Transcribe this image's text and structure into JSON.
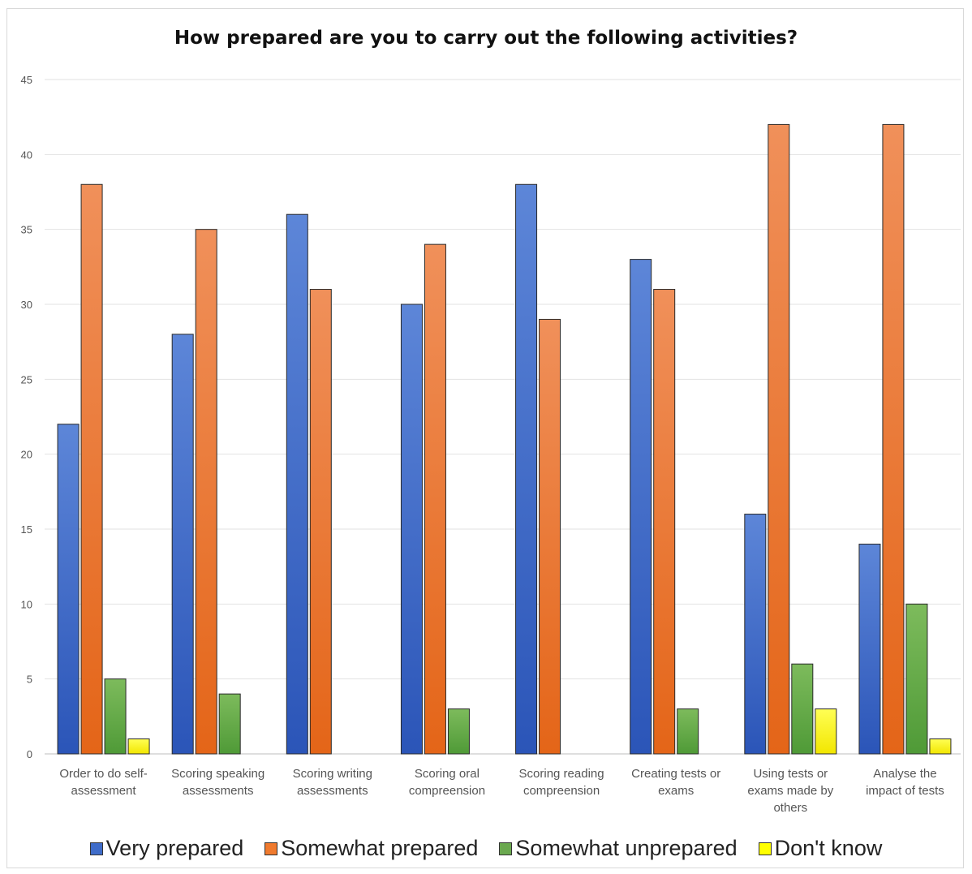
{
  "chart_data": {
    "type": "bar",
    "title": "How prepared are you to carry out the following activities?",
    "xlabel": "",
    "ylabel": "",
    "ylim": [
      0,
      45
    ],
    "yticks": [
      0,
      5,
      10,
      15,
      20,
      25,
      30,
      35,
      40,
      45
    ],
    "grid": true,
    "legend_position": "bottom",
    "categories": [
      [
        "Order to do self-",
        "assessment"
      ],
      [
        "Scoring speaking",
        "assessments"
      ],
      [
        "Scoring writing",
        "assessments"
      ],
      [
        "Scoring oral",
        "compreension"
      ],
      [
        "Scoring reading",
        "compreension"
      ],
      [
        "Creating tests or",
        "exams"
      ],
      [
        "Using tests or",
        "exams made by",
        "others"
      ],
      [
        "Analyse the",
        "impact of tests"
      ]
    ],
    "series": [
      {
        "name": "Very prepared",
        "color": "#3f6cc9",
        "values": [
          22,
          28,
          36,
          30,
          38,
          33,
          16,
          14
        ]
      },
      {
        "name": "Somewhat prepared",
        "color": "#f07a2e",
        "values": [
          38,
          35,
          31,
          34,
          29,
          31,
          42,
          42
        ]
      },
      {
        "name": "Somewhat unprepared",
        "color": "#6aa84f",
        "values": [
          5,
          4,
          0,
          3,
          0,
          3,
          6,
          10
        ]
      },
      {
        "name": "Don't know",
        "color": "#ffff00",
        "values": [
          1,
          0,
          0,
          0,
          0,
          0,
          3,
          1
        ]
      }
    ]
  }
}
